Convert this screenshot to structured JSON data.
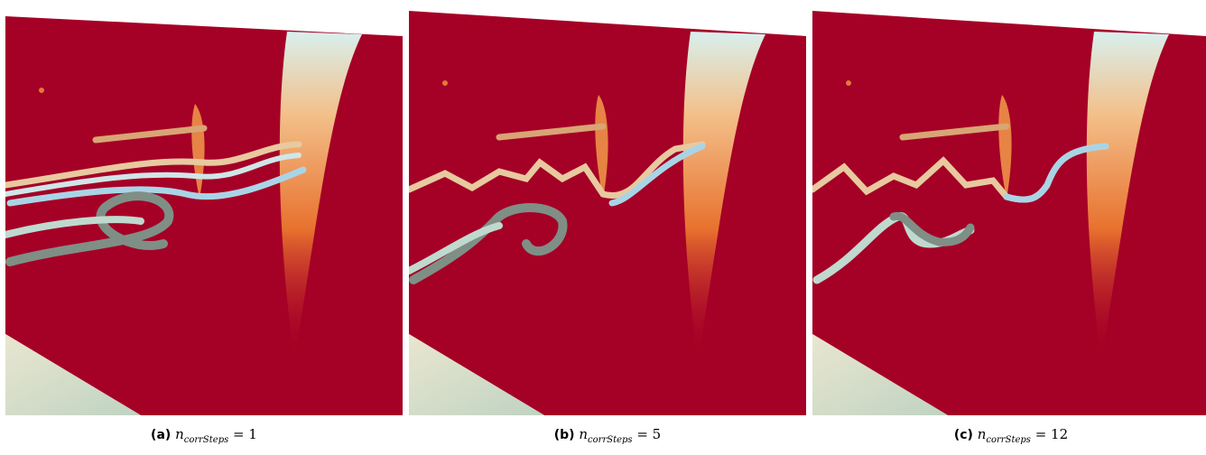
{
  "figure": {
    "panels": [
      {
        "label": "(a)",
        "symbol": "n",
        "subscript": "corrSteps",
        "relation": "= 1"
      },
      {
        "label": "(b)",
        "symbol": "n",
        "subscript": "corrSteps",
        "relation": "= 5"
      },
      {
        "label": "(c)",
        "symbol": "n",
        "subscript": "corrSteps",
        "relation": "= 12"
      }
    ]
  }
}
